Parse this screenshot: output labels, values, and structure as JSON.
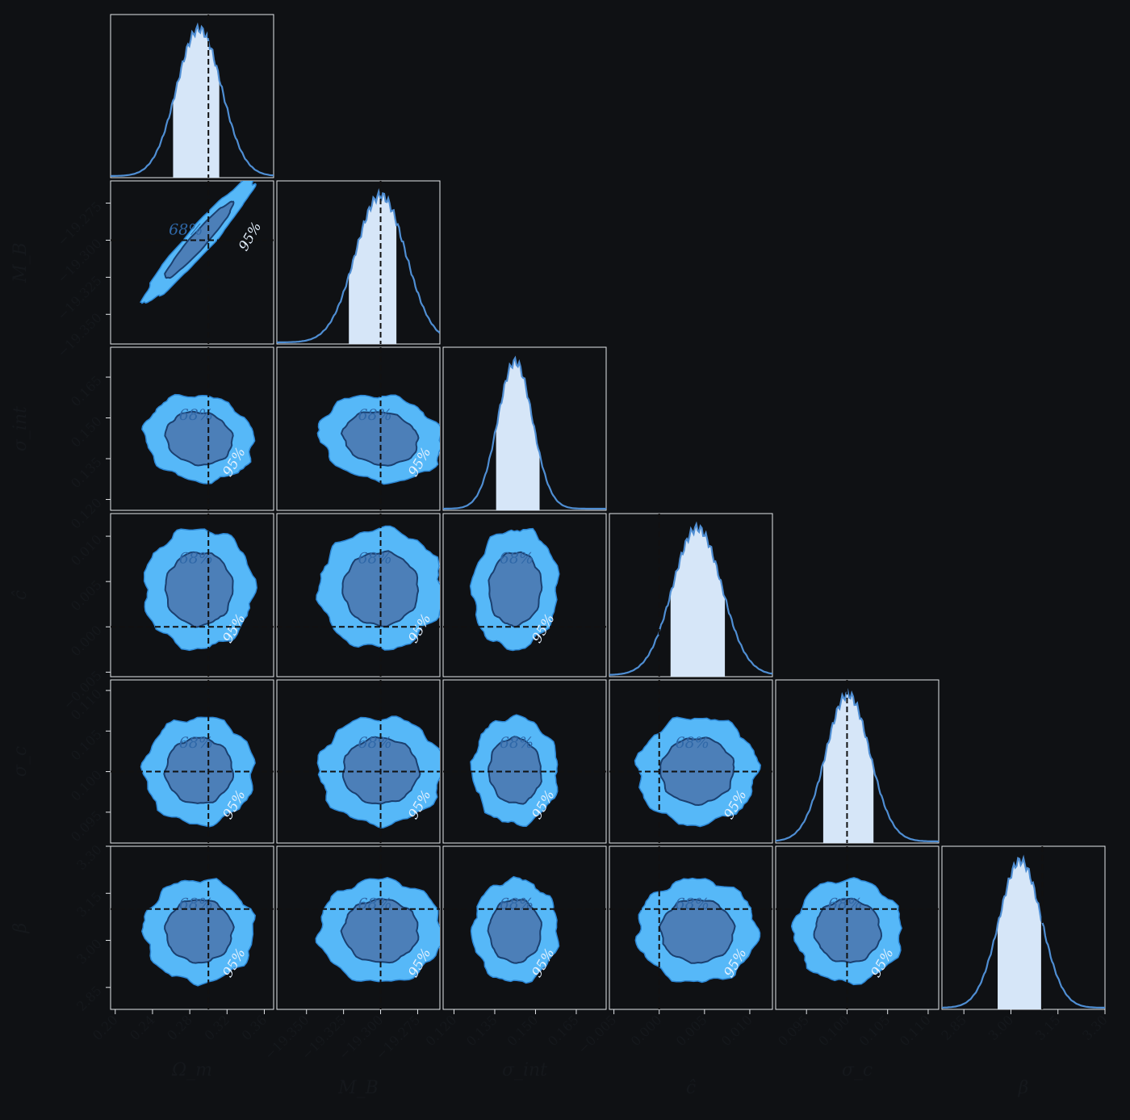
{
  "chart_data": {
    "type": "corner",
    "parameters": [
      {
        "name": "Ω_m",
        "lim": [
          0.195,
          0.37
        ],
        "ticks": [
          0.2,
          0.24,
          0.28,
          0.32,
          0.36
        ],
        "tick_labels": [
          "0.20",
          "0.24",
          "0.28",
          "0.32",
          "0.36"
        ],
        "truth": 0.3,
        "mean": 0.29,
        "sd": 0.024,
        "band": [
          0.261,
          0.312
        ]
      },
      {
        "name": "M_B",
        "lim": [
          -19.37,
          -19.26
        ],
        "ticks": [
          -19.35,
          -19.325,
          -19.3,
          -19.275
        ],
        "tick_labels": [
          "−19.350",
          "−19.325",
          "−19.300",
          "−19.275"
        ],
        "truth": -19.3,
        "mean": -19.3,
        "sd": 0.017,
        "band": [
          -19.322,
          -19.289
        ]
      },
      {
        "name": "σ_int",
        "lim": [
          0.116,
          0.176
        ],
        "ticks": [
          0.12,
          0.135,
          0.15,
          0.165
        ],
        "tick_labels": [
          "0.120",
          "0.135",
          "0.150",
          "0.165"
        ],
        "truth": null,
        "mean": 0.1425,
        "sd": 0.0064,
        "band": [
          0.1355,
          0.1515
        ]
      },
      {
        "name": "ĉ",
        "lim": [
          -0.0055,
          0.0125
        ],
        "ticks": [
          -0.005,
          0.0,
          0.005,
          0.01
        ],
        "tick_labels": [
          "−0.005",
          "0.000",
          "0.005",
          "0.010"
        ],
        "truth": 0.0,
        "mean": 0.0042,
        "sd": 0.0027,
        "band": [
          0.0012,
          0.0073
        ]
      },
      {
        "name": "σ_c",
        "lim": [
          0.0912,
          0.1113
        ],
        "ticks": [
          0.095,
          0.1,
          0.105,
          0.11
        ],
        "tick_labels": [
          "0.095",
          "0.100",
          "0.105",
          "0.110"
        ],
        "truth": 0.1,
        "mean": 0.1001,
        "sd": 0.0027,
        "band": [
          0.097,
          0.1034
        ]
      },
      {
        "name": "β",
        "lim": [
          2.78,
          3.3
        ],
        "ticks": [
          2.85,
          3.0,
          3.15,
          3.3
        ],
        "tick_labels": [
          "2.85",
          "3.00",
          "3.15",
          "3.30"
        ],
        "truth": 3.1,
        "mean": 3.03,
        "sd": 0.067,
        "band": [
          2.955,
          3.099
        ]
      }
    ],
    "axis_labels": [
      "Ω_m",
      "M_B",
      "σ_int",
      "ĉ",
      "σ_c",
      "β"
    ],
    "correlations": {
      "1-0": 0.96,
      "2-0": -0.35,
      "2-1": -0.3,
      "3-0": -0.1,
      "3-1": 0.05,
      "3-2": -0.1,
      "4-0": 0.0,
      "4-1": 0.0,
      "4-2": 0.1,
      "4-3": 0.15,
      "5-0": -0.1,
      "5-1": 0.0,
      "5-2": 0.0,
      "5-3": -0.05,
      "5-4": -0.25
    },
    "contour_levels": [
      "68%",
      "95%"
    ],
    "colors": {
      "background": "#0f1114",
      "frame": "#e3e6ea",
      "credible_region_68": "#4c7fb8",
      "credible_region_95": "#56b8f8",
      "pdf_line": "#4f8ed3",
      "pdf_band": "#d6e6f8",
      "truth_line": "#111111"
    }
  }
}
